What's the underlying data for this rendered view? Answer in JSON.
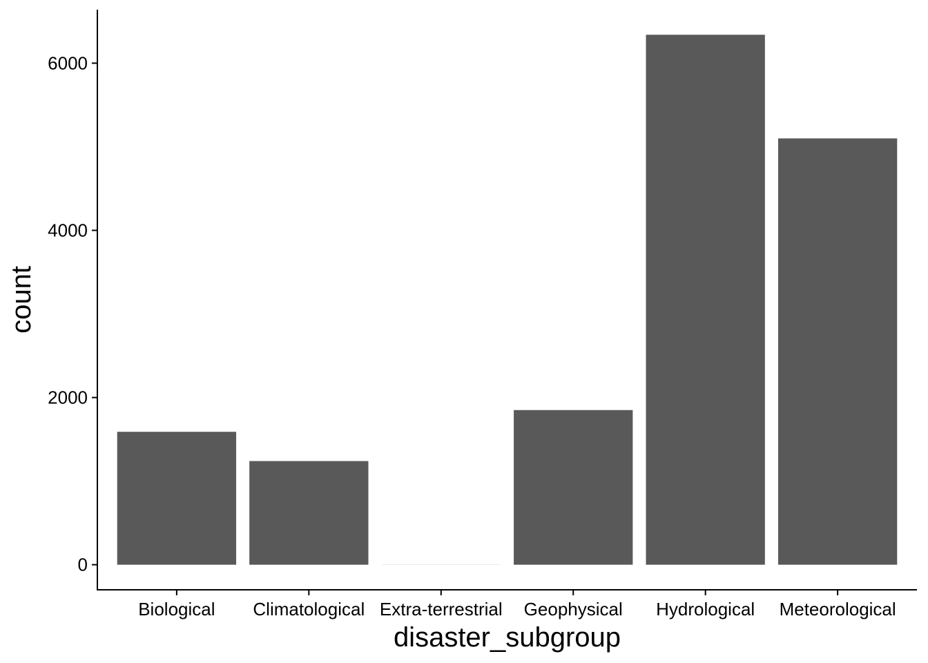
{
  "chart_data": {
    "type": "bar",
    "title": "",
    "xlabel": "disaster_subgroup",
    "ylabel": "count",
    "categories": [
      "Biological",
      "Climatological",
      "Extra-terrestrial",
      "Geophysical",
      "Hydrological",
      "Meteorological"
    ],
    "values": [
      1590,
      1240,
      1,
      1850,
      6340,
      5100
    ],
    "ylim": [
      -300,
      6640
    ],
    "yticks": [
      0,
      2000,
      4000,
      6000
    ],
    "ytick_labels": [
      "0",
      "2000",
      "4000",
      "6000"
    ],
    "grid": false,
    "legend": "none",
    "colors": {
      "bar": "#595959",
      "axis": "#000000",
      "background": "#ffffff"
    }
  }
}
